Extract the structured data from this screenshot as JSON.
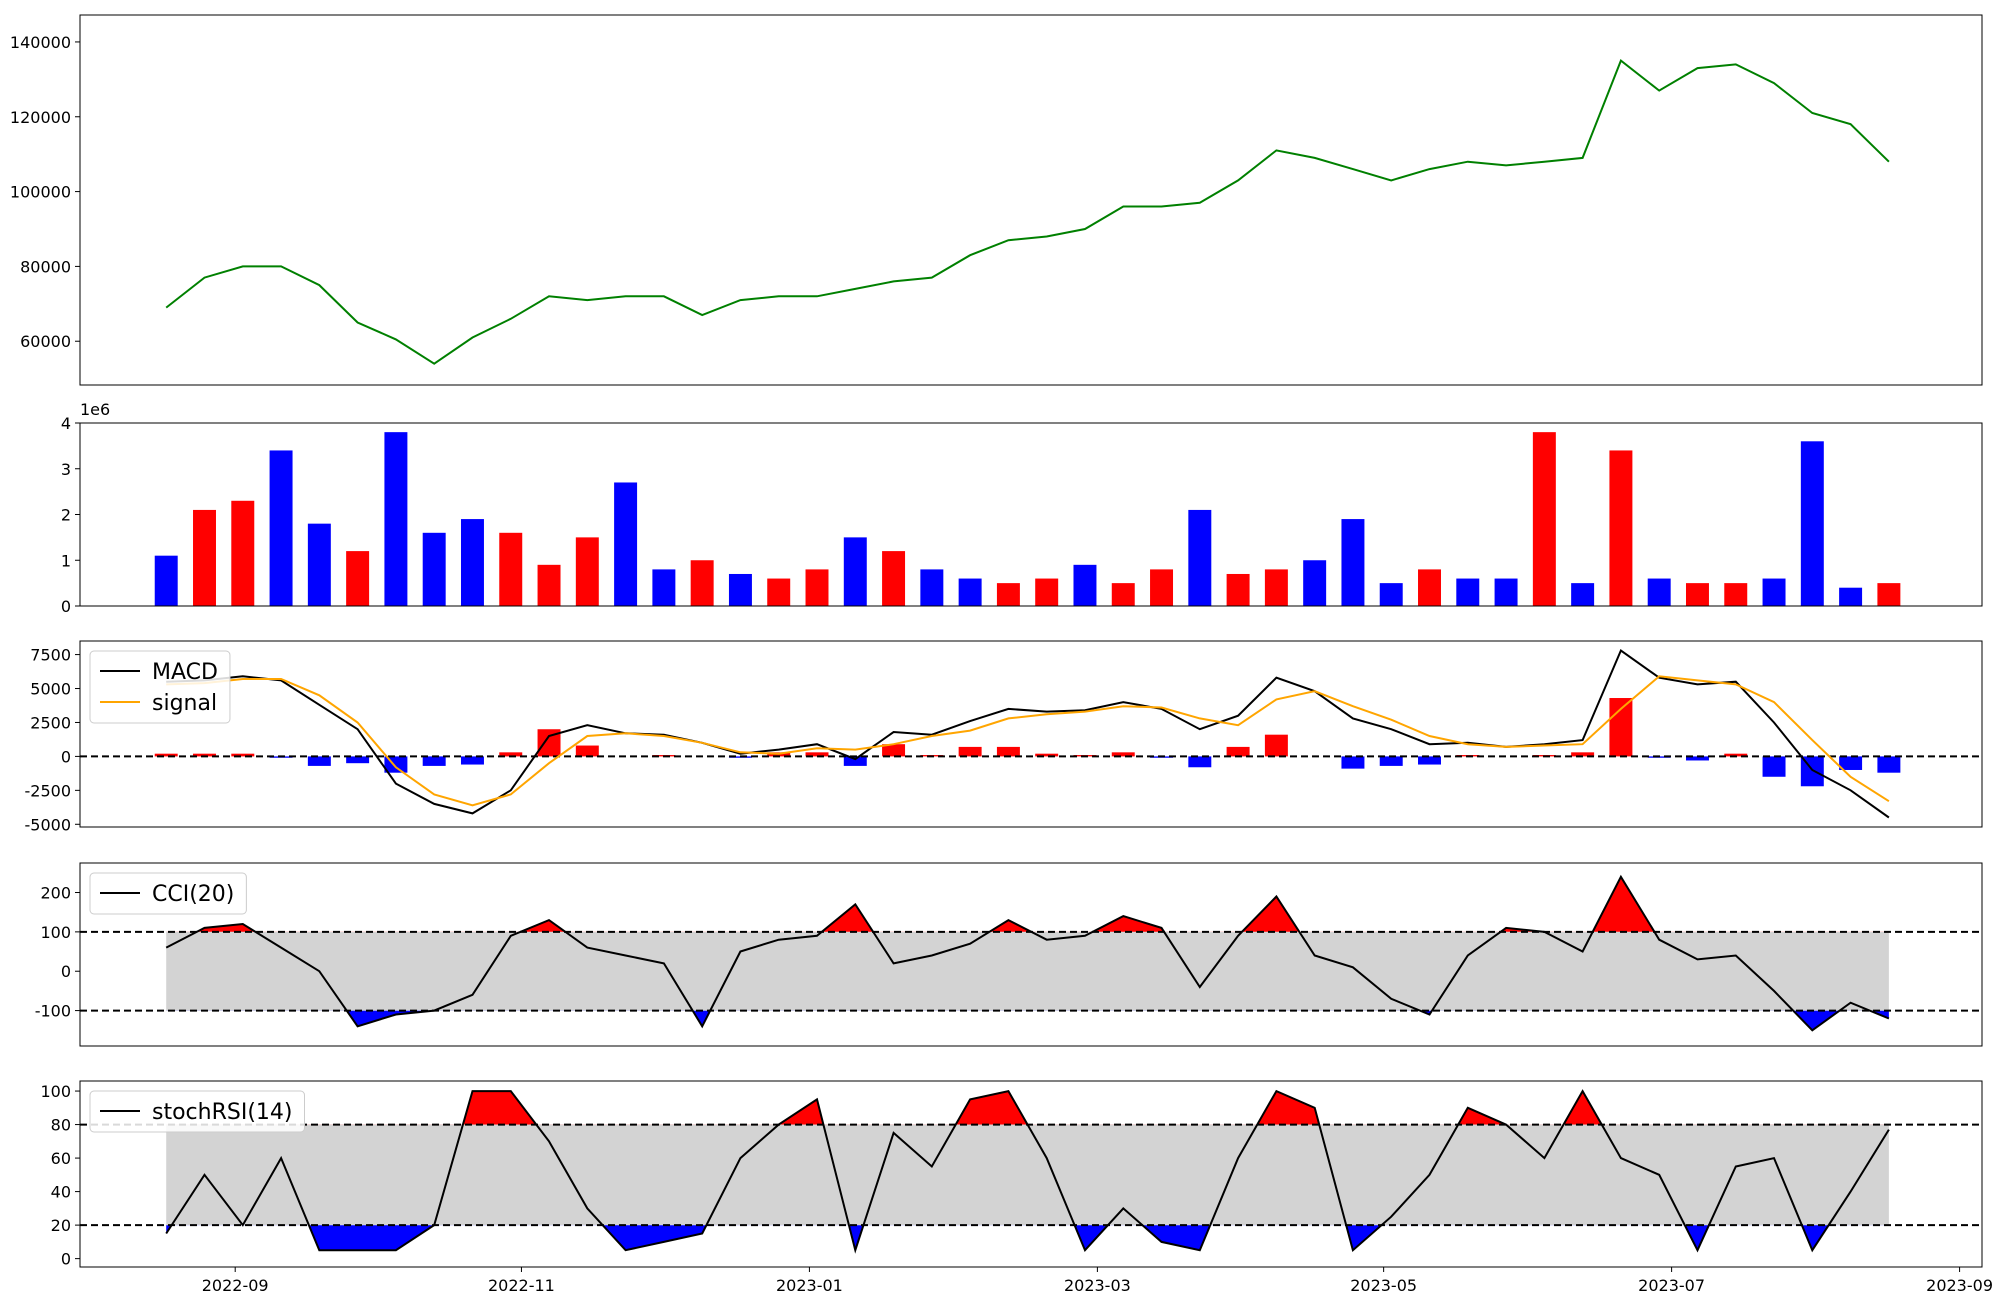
{
  "chart_data": [
    {
      "type": "line",
      "x": [
        2022.627,
        2022.6492,
        2022.6714,
        2022.6936,
        2022.7158,
        2022.738,
        2022.7602,
        2022.7824,
        2022.8046,
        2022.8268,
        2022.849,
        2022.8712,
        2022.8934,
        2022.9156,
        2022.9378,
        2022.96,
        2022.9822,
        2023.0044,
        2023.0266,
        2023.0488,
        2023.071,
        2023.0932,
        2023.1154,
        2023.1376,
        2023.1598,
        2023.182,
        2023.2042,
        2023.2264,
        2023.2486,
        2023.2708,
        2023.293,
        2023.3152,
        2023.3374,
        2023.3596,
        2023.3818,
        2023.404,
        2023.4262,
        2023.4484,
        2023.4706,
        2023.4928,
        2023.515,
        2023.5372,
        2023.5594,
        2023.5816,
        2023.6038,
        2023.626
      ],
      "xlim": [
        2022.577,
        2023.68
      ],
      "series": [
        {
          "color": "green",
          "values": [
            69000,
            77000,
            80000,
            80000,
            75000,
            65000,
            60500,
            54000,
            61000,
            66000,
            72000,
            71000,
            72000,
            72000,
            67000,
            71000,
            72000,
            72000,
            74000,
            76000,
            77000,
            83000,
            87000,
            88000,
            90000,
            96000,
            96000,
            97000,
            103000,
            111000,
            109000,
            106000,
            103000,
            106000,
            108000,
            107000,
            108000,
            109000,
            135000,
            127000,
            133000,
            134000,
            129000,
            121000,
            118000,
            108000
          ]
        }
      ],
      "ylim": [
        48300,
        147200
      ],
      "yticks": [
        60000,
        80000,
        100000,
        120000,
        140000
      ]
    },
    {
      "type": "bar",
      "x": [
        2022.627,
        2022.6492,
        2022.6714,
        2022.6936,
        2022.7158,
        2022.738,
        2022.7602,
        2022.7824,
        2022.8046,
        2022.8268,
        2022.849,
        2022.8712,
        2022.8934,
        2022.9156,
        2022.9378,
        2022.96,
        2022.9822,
        2023.0044,
        2023.0266,
        2023.0488,
        2023.071,
        2023.0932,
        2023.1154,
        2023.1376,
        2023.1598,
        2023.182,
        2023.2042,
        2023.2264,
        2023.2486,
        2023.2708,
        2023.293,
        2023.3152,
        2023.3374,
        2023.3596,
        2023.3818,
        2023.404,
        2023.4262,
        2023.4484,
        2023.4706,
        2023.4928,
        2023.515,
        2023.5372,
        2023.5594,
        2023.5816,
        2023.6038,
        2023.626
      ],
      "xlim": [
        2022.577,
        2023.68
      ],
      "values": [
        1100000,
        2100000,
        2300000,
        3400000,
        1800000,
        1200000,
        3800000,
        1600000,
        1900000,
        1600000,
        900000,
        1500000,
        2700000,
        800000,
        1000000,
        700000,
        600000,
        800000,
        1500000,
        1200000,
        800000,
        600000,
        500000,
        600000,
        900000,
        500000,
        800000,
        2100000,
        700000,
        800000,
        1000000,
        1900000,
        500000,
        800000,
        600000,
        600000,
        3800000,
        500000,
        3400000,
        600000,
        500000,
        500000,
        600000,
        3600000,
        400000,
        500000
      ],
      "colors": [
        "blue",
        "red",
        "red",
        "blue",
        "blue",
        "red",
        "blue",
        "blue",
        "blue",
        "red",
        "red",
        "red",
        "blue",
        "blue",
        "red",
        "blue",
        "red",
        "red",
        "blue",
        "red",
        "blue",
        "blue",
        "red",
        "red",
        "blue",
        "red",
        "red",
        "blue",
        "red",
        "red",
        "blue",
        "blue",
        "blue",
        "red",
        "blue",
        "blue",
        "red",
        "blue",
        "red",
        "blue",
        "red",
        "red",
        "blue",
        "blue",
        "blue",
        "red"
      ],
      "offset_text": "1e6",
      "ylim": [
        0,
        4000000
      ],
      "yticks": [
        0,
        {
          "value": 1000000,
          "label": "1"
        },
        {
          "value": 2000000,
          "label": "2"
        },
        {
          "value": 3000000,
          "label": "3"
        },
        {
          "value": 4000000,
          "label": "4"
        }
      ]
    },
    {
      "type": "macd",
      "x": [
        2022.627,
        2022.6492,
        2022.6714,
        2022.6936,
        2022.7158,
        2022.738,
        2022.7602,
        2022.7824,
        2022.8046,
        2022.8268,
        2022.849,
        2022.8712,
        2022.8934,
        2022.9156,
        2022.9378,
        2022.96,
        2022.9822,
        2023.0044,
        2023.0266,
        2023.0488,
        2023.071,
        2023.0932,
        2023.1154,
        2023.1376,
        2023.1598,
        2023.182,
        2023.2042,
        2023.2264,
        2023.2486,
        2023.2708,
        2023.293,
        2023.3152,
        2023.3374,
        2023.3596,
        2023.3818,
        2023.404,
        2023.4262,
        2023.4484,
        2023.4706,
        2023.4928,
        2023.515,
        2023.5372,
        2023.5594,
        2023.5816,
        2023.6038,
        2023.626
      ],
      "xlim": [
        2022.577,
        2023.68
      ],
      "series": [
        {
          "name": "MACD",
          "color": "black",
          "values": [
            5500,
            5600,
            5900,
            5600,
            3800,
            2000,
            -2000,
            -3500,
            -4200,
            -2500,
            1500,
            2300,
            1700,
            1600,
            1000,
            200,
            500,
            900,
            -200,
            1800,
            1600,
            2600,
            3500,
            3300,
            3400,
            4000,
            3500,
            2000,
            3000,
            5800,
            4800,
            2800,
            2000,
            900,
            1000,
            700,
            900,
            1200,
            7800,
            5800,
            5300,
            5500,
            2500,
            -1000,
            -2500,
            -4500
          ]
        },
        {
          "name": "signal",
          "color": "orange",
          "values": [
            5300,
            5400,
            5700,
            5700,
            4500,
            2500,
            -800,
            -2800,
            -3600,
            -2800,
            -500,
            1500,
            1700,
            1500,
            1000,
            300,
            200,
            600,
            500,
            900,
            1500,
            1900,
            2800,
            3100,
            3300,
            3700,
            3600,
            2800,
            2300,
            4200,
            4800,
            3700,
            2700,
            1500,
            900,
            700,
            800,
            900,
            3500,
            5900,
            5600,
            5300,
            4000,
            1200,
            -1500,
            -3300
          ]
        }
      ],
      "histogram": [
        200,
        200,
        200,
        -100,
        -700,
        -500,
        -1200,
        -700,
        -600,
        300,
        2000,
        800,
        0,
        100,
        0,
        -100,
        300,
        300,
        -700,
        900,
        100,
        700,
        700,
        200,
        100,
        300,
        -100,
        -800,
        700,
        1600,
        0,
        -900,
        -700,
        -600,
        100,
        0,
        100,
        300,
        4300,
        -100,
        -300,
        200,
        -1500,
        -2200,
        -1000,
        -1200
      ],
      "histogram_colors": {
        "positive": "red",
        "negative": "blue"
      },
      "hlines": [
        0
      ],
      "legend": "upper left",
      "ylim": [
        -5200,
        8500
      ],
      "yticks": [
        -5000,
        -2500,
        0,
        2500,
        5000,
        7500
      ]
    },
    {
      "type": "oscillator",
      "x": [
        2022.627,
        2022.6492,
        2022.6714,
        2022.6936,
        2022.7158,
        2022.738,
        2022.7602,
        2022.7824,
        2022.8046,
        2022.8268,
        2022.849,
        2022.8712,
        2022.8934,
        2022.9156,
        2022.9378,
        2022.96,
        2022.9822,
        2023.0044,
        2023.0266,
        2023.0488,
        2023.071,
        2023.0932,
        2023.1154,
        2023.1376,
        2023.1598,
        2023.182,
        2023.2042,
        2023.2264,
        2023.2486,
        2023.2708,
        2023.293,
        2023.3152,
        2023.3374,
        2023.3596,
        2023.3818,
        2023.404,
        2023.4262,
        2023.4484,
        2023.4706,
        2023.4928,
        2023.515,
        2023.5372,
        2023.5594,
        2023.5816,
        2023.6038,
        2023.626
      ],
      "xlim": [
        2022.577,
        2023.68
      ],
      "series": [
        {
          "name": "CCI(20)",
          "color": "black",
          "values": [
            60,
            110,
            120,
            60,
            0,
            -140,
            -110,
            -100,
            -60,
            90,
            130,
            60,
            40,
            20,
            -140,
            50,
            80,
            90,
            170,
            20,
            40,
            70,
            130,
            80,
            90,
            140,
            110,
            -40,
            90,
            190,
            40,
            10,
            -70,
            -110,
            40,
            110,
            100,
            50,
            240,
            80,
            30,
            40,
            -50,
            -150,
            -80,
            -120
          ]
        }
      ],
      "hlines": [
        -100,
        100
      ],
      "fill_colors": {
        "above": "red",
        "below": "blue",
        "band": "lightgray"
      },
      "legend": "upper left",
      "ylim": [
        -190,
        275
      ],
      "yticks": [
        -100,
        0,
        100,
        200
      ]
    },
    {
      "type": "oscillator",
      "x": [
        2022.627,
        2022.6492,
        2022.6714,
        2022.6936,
        2022.7158,
        2022.738,
        2022.7602,
        2022.7824,
        2022.8046,
        2022.8268,
        2022.849,
        2022.8712,
        2022.8934,
        2022.9156,
        2022.9378,
        2022.96,
        2022.9822,
        2023.0044,
        2023.0266,
        2023.0488,
        2023.071,
        2023.0932,
        2023.1154,
        2023.1376,
        2023.1598,
        2023.182,
        2023.2042,
        2023.2264,
        2023.2486,
        2023.2708,
        2023.293,
        2023.3152,
        2023.3374,
        2023.3596,
        2023.3818,
        2023.404,
        2023.4262,
        2023.4484,
        2023.4706,
        2023.4928,
        2023.515,
        2023.5372,
        2023.5594,
        2023.5816,
        2023.6038,
        2023.626
      ],
      "xlim": [
        2022.577,
        2023.68
      ],
      "series": [
        {
          "name": "stochRSI(14)",
          "color": "black",
          "values": [
            15,
            50,
            20,
            60,
            5,
            5,
            5,
            20,
            100,
            100,
            70,
            30,
            5,
            10,
            15,
            60,
            80,
            95,
            5,
            75,
            55,
            95,
            100,
            60,
            5,
            30,
            10,
            5,
            60,
            100,
            90,
            5,
            25,
            50,
            90,
            80,
            60,
            100,
            60,
            50,
            5,
            55,
            60,
            5,
            40,
            77
          ]
        }
      ],
      "hlines": [
        20,
        80
      ],
      "fill_colors": {
        "above": "red",
        "below": "blue",
        "band": "lightgray"
      },
      "legend": "upper left",
      "ylim": [
        -5,
        106
      ],
      "yticks": [
        0,
        20,
        40,
        60,
        80,
        100
      ],
      "xticks": [
        {
          "value": 2022.667,
          "label": "2022-09"
        },
        {
          "value": 2022.833,
          "label": "2022-11"
        },
        {
          "value": 2023.0,
          "label": "2023-01"
        },
        {
          "value": 2023.167,
          "label": "2023-03"
        },
        {
          "value": 2023.333,
          "label": "2023-05"
        },
        {
          "value": 2023.5,
          "label": "2023-07"
        },
        {
          "value": 2023.667,
          "label": "2023-09"
        }
      ]
    }
  ]
}
